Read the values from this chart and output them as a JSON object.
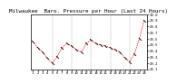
{
  "title": "Milwaukee  Baro. Pressure per Hour (Last 24 Hours)",
  "hours": [
    0,
    1,
    2,
    3,
    4,
    5,
    6,
    7,
    8,
    9,
    10,
    11,
    12,
    13,
    14,
    15,
    16,
    17,
    18,
    19,
    20,
    21,
    22,
    23
  ],
  "pressure": [
    29.55,
    29.45,
    29.38,
    29.28,
    29.2,
    29.3,
    29.45,
    29.52,
    29.48,
    29.42,
    29.38,
    29.52,
    29.58,
    29.52,
    29.5,
    29.48,
    29.45,
    29.42,
    29.38,
    29.28,
    29.22,
    29.35,
    29.6,
    29.9
  ],
  "line_color": "#ff0000",
  "marker_color": "#000000",
  "bg_color": "#ffffff",
  "grid_color": "#888888",
  "title_fontsize": 4.2,
  "tick_fontsize": 2.8,
  "ylim_min": 29.1,
  "ylim_max": 30.0,
  "yticks": [
    29.1,
    29.2,
    29.3,
    29.4,
    29.5,
    29.6,
    29.7,
    29.8,
    29.9,
    30.0
  ],
  "ytick_labels": [
    "29.1",
    "29.2",
    "29.3",
    "29.4",
    "29.5",
    "29.6",
    "29.7",
    "29.8",
    "29.9",
    "30.0"
  ],
  "x_labels": [
    "1",
    "2",
    "3",
    "4",
    "5",
    "6",
    "7",
    "8",
    "9",
    "10",
    "11",
    "12",
    "13",
    "14",
    "15",
    "16",
    "17",
    "18",
    "19",
    "20",
    "21",
    "22",
    "23",
    "24"
  ],
  "vgrid_positions": [
    4,
    8,
    12,
    16,
    20
  ]
}
